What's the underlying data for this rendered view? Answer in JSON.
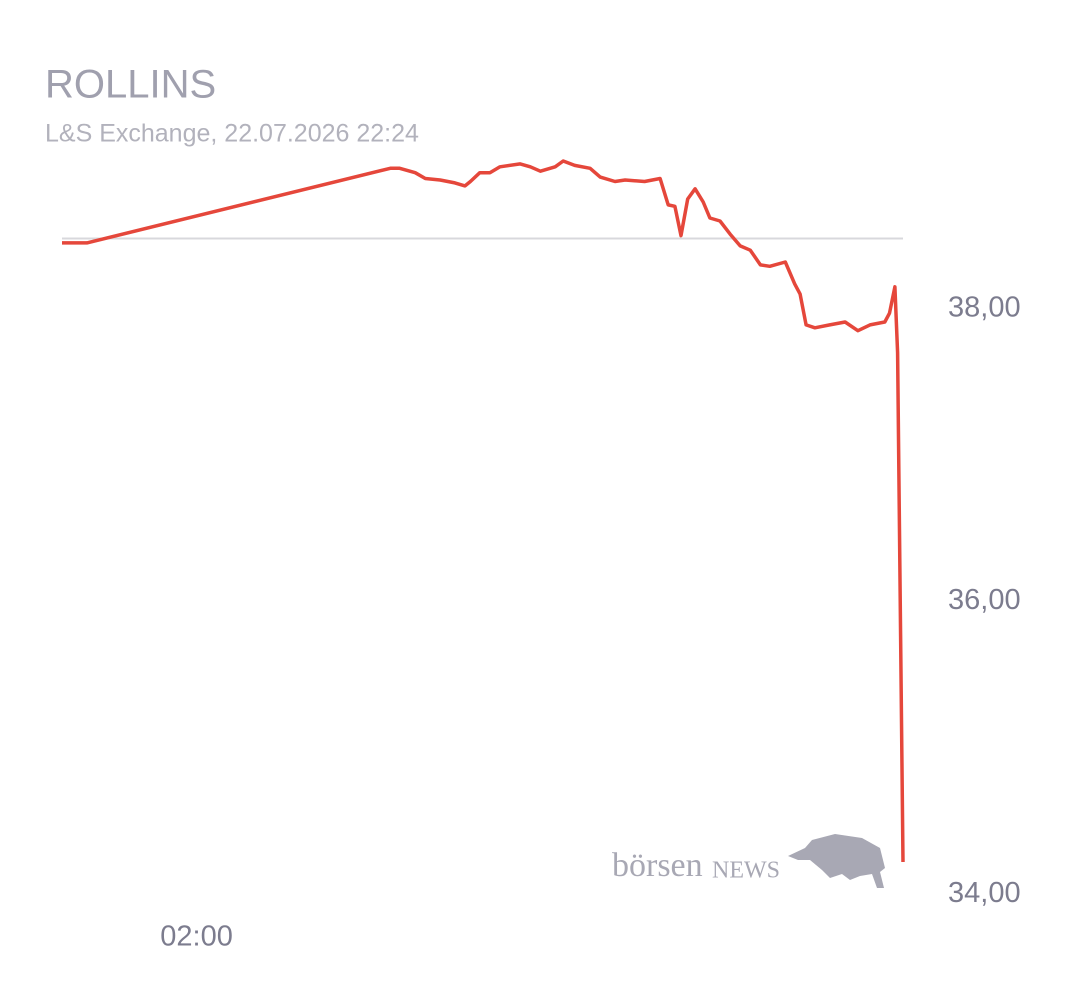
{
  "chart_data": {
    "type": "line",
    "title": "ROLLINS",
    "subtitle": "L&S Exchange, 22.07.2026 22:24",
    "watermark": {
      "prefix": "börsen",
      "suffix": "NEWS"
    },
    "color": "#e5473b",
    "reference_line": 38.48,
    "x": [
      0,
      0.37,
      4.88,
      5.02,
      5.25,
      5.4,
      5.62,
      5.84,
      5.99,
      6.07,
      6.21,
      6.36,
      6.51,
      6.81,
      6.96,
      7.11,
      7.33,
      7.45,
      7.62,
      7.85,
      8.0,
      8.22,
      8.37,
      8.66,
      8.89,
      9.01,
      9.11,
      9.2,
      9.3,
      9.41,
      9.53,
      9.63,
      9.78,
      9.93,
      10.08,
      10.23,
      10.38,
      10.52,
      10.75,
      10.89,
      10.97,
      11.06,
      11.19,
      11.41,
      11.64,
      11.83,
      12.01,
      12.23,
      12.3,
      12.38,
      12.42,
      12.5
    ],
    "values": [
      38.45,
      38.45,
      38.96,
      38.96,
      38.93,
      38.89,
      38.88,
      38.86,
      38.84,
      38.87,
      38.93,
      38.93,
      38.97,
      38.99,
      38.97,
      38.94,
      38.97,
      39.01,
      38.98,
      38.96,
      38.9,
      38.87,
      38.88,
      38.87,
      38.89,
      38.71,
      38.7,
      38.5,
      38.75,
      38.82,
      38.73,
      38.62,
      38.6,
      38.51,
      38.43,
      38.4,
      38.3,
      38.29,
      38.32,
      38.17,
      38.1,
      37.89,
      37.87,
      37.89,
      37.91,
      37.85,
      37.89,
      37.91,
      37.97,
      38.15,
      37.7,
      34.22
    ],
    "xlim": [
      0,
      12.5
    ],
    "xticks": [
      {
        "value": 2,
        "label": "02:00"
      }
    ],
    "ylim": [
      33.55,
      39.7
    ],
    "yticks": [
      {
        "value": 34,
        "label": "34,00"
      },
      {
        "value": 36,
        "label": "36,00"
      },
      {
        "value": 38,
        "label": "38,00"
      }
    ]
  }
}
